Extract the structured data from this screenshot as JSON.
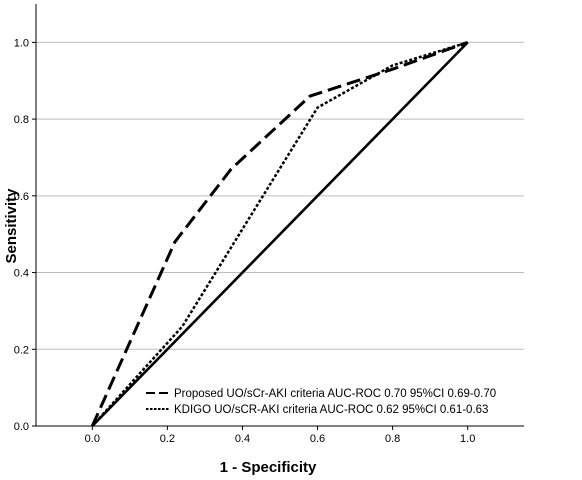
{
  "chart_data": {
    "type": "line",
    "xlabel": "1 - Specificity",
    "ylabel": "Sensitivity",
    "xlim": [
      -0.15,
      1.15
    ],
    "ylim": [
      0,
      1.1
    ],
    "x_ticks": [
      "0.0",
      "0.2",
      "0.4",
      "0.6",
      "0.8",
      "1.0"
    ],
    "y_ticks": [
      "0.0",
      "0.2",
      "0.4",
      "0.6",
      "0.8",
      "1.0"
    ],
    "grid": "horizontal",
    "legend_position": "bottom-right",
    "series": [
      {
        "name": "Proposed UO/sCr-AKI criteria AUC-ROC 0.70 95%CI 0.69-0.70",
        "style": "dashed",
        "color": "#000000",
        "points": [
          [
            0.0,
            0.0
          ],
          [
            0.22,
            0.48
          ],
          [
            0.37,
            0.67
          ],
          [
            0.58,
            0.86
          ],
          [
            0.8,
            0.93
          ],
          [
            1.0,
            1.0
          ]
        ]
      },
      {
        "name": "KDIGO UO/sCR-AKI criteria AUC-ROC 0.62 95%CI 0.61-0.63",
        "style": "dotted",
        "color": "#000000",
        "points": [
          [
            0.0,
            0.0
          ],
          [
            0.24,
            0.26
          ],
          [
            0.6,
            0.83
          ],
          [
            0.8,
            0.94
          ],
          [
            1.0,
            1.0
          ]
        ]
      },
      {
        "name": "",
        "style": "solid",
        "color": "#000000",
        "points": [
          [
            0.0,
            0.0
          ],
          [
            1.0,
            1.0
          ]
        ]
      }
    ]
  }
}
